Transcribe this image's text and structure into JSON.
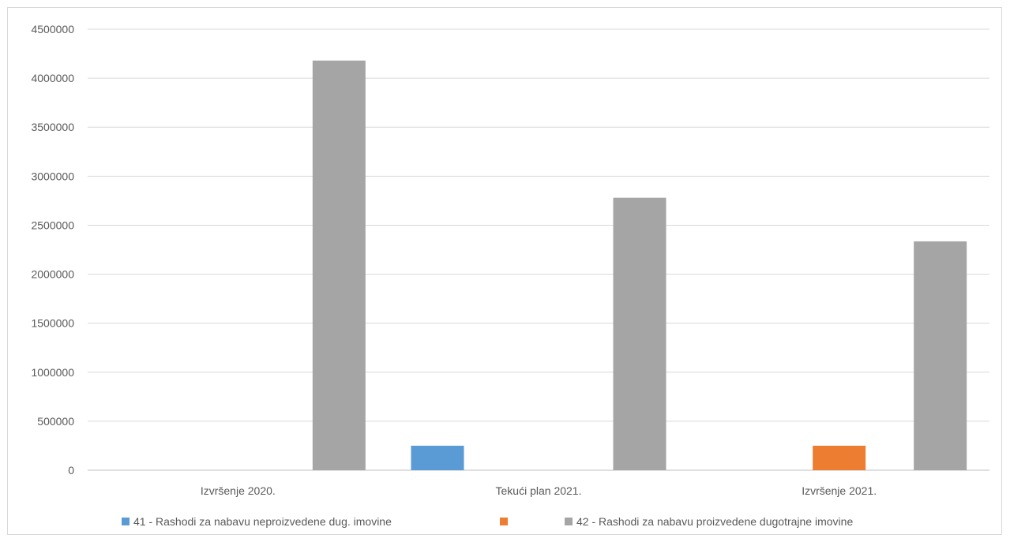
{
  "chart_data": {
    "type": "bar",
    "categories": [
      "Izvršenje 2020.",
      "Tekući plan 2021.",
      "Izvršenje 2021."
    ],
    "series": [
      {
        "name": "41 - Rashodi za nabavu neproizvedene dug. imovine",
        "color": "#5b9bd5",
        "values": [
          0,
          250000,
          0
        ]
      },
      {
        "name": "",
        "color": "#ed7d31",
        "values": [
          0,
          0,
          250000
        ]
      },
      {
        "name": "42 - Rashodi za nabavu proizvedene dugotrajne imovine",
        "color": "#a5a5a5",
        "values": [
          4180000,
          2780000,
          2335000
        ]
      }
    ],
    "title": "",
    "xlabel": "",
    "ylabel": "",
    "ylim": [
      0,
      4500000
    ],
    "yticks": [
      "0",
      "500000",
      "1000000",
      "1500000",
      "2000000",
      "2500000",
      "3000000",
      "3500000",
      "4000000",
      "4500000"
    ],
    "grid": true,
    "legend_position": "bottom"
  }
}
